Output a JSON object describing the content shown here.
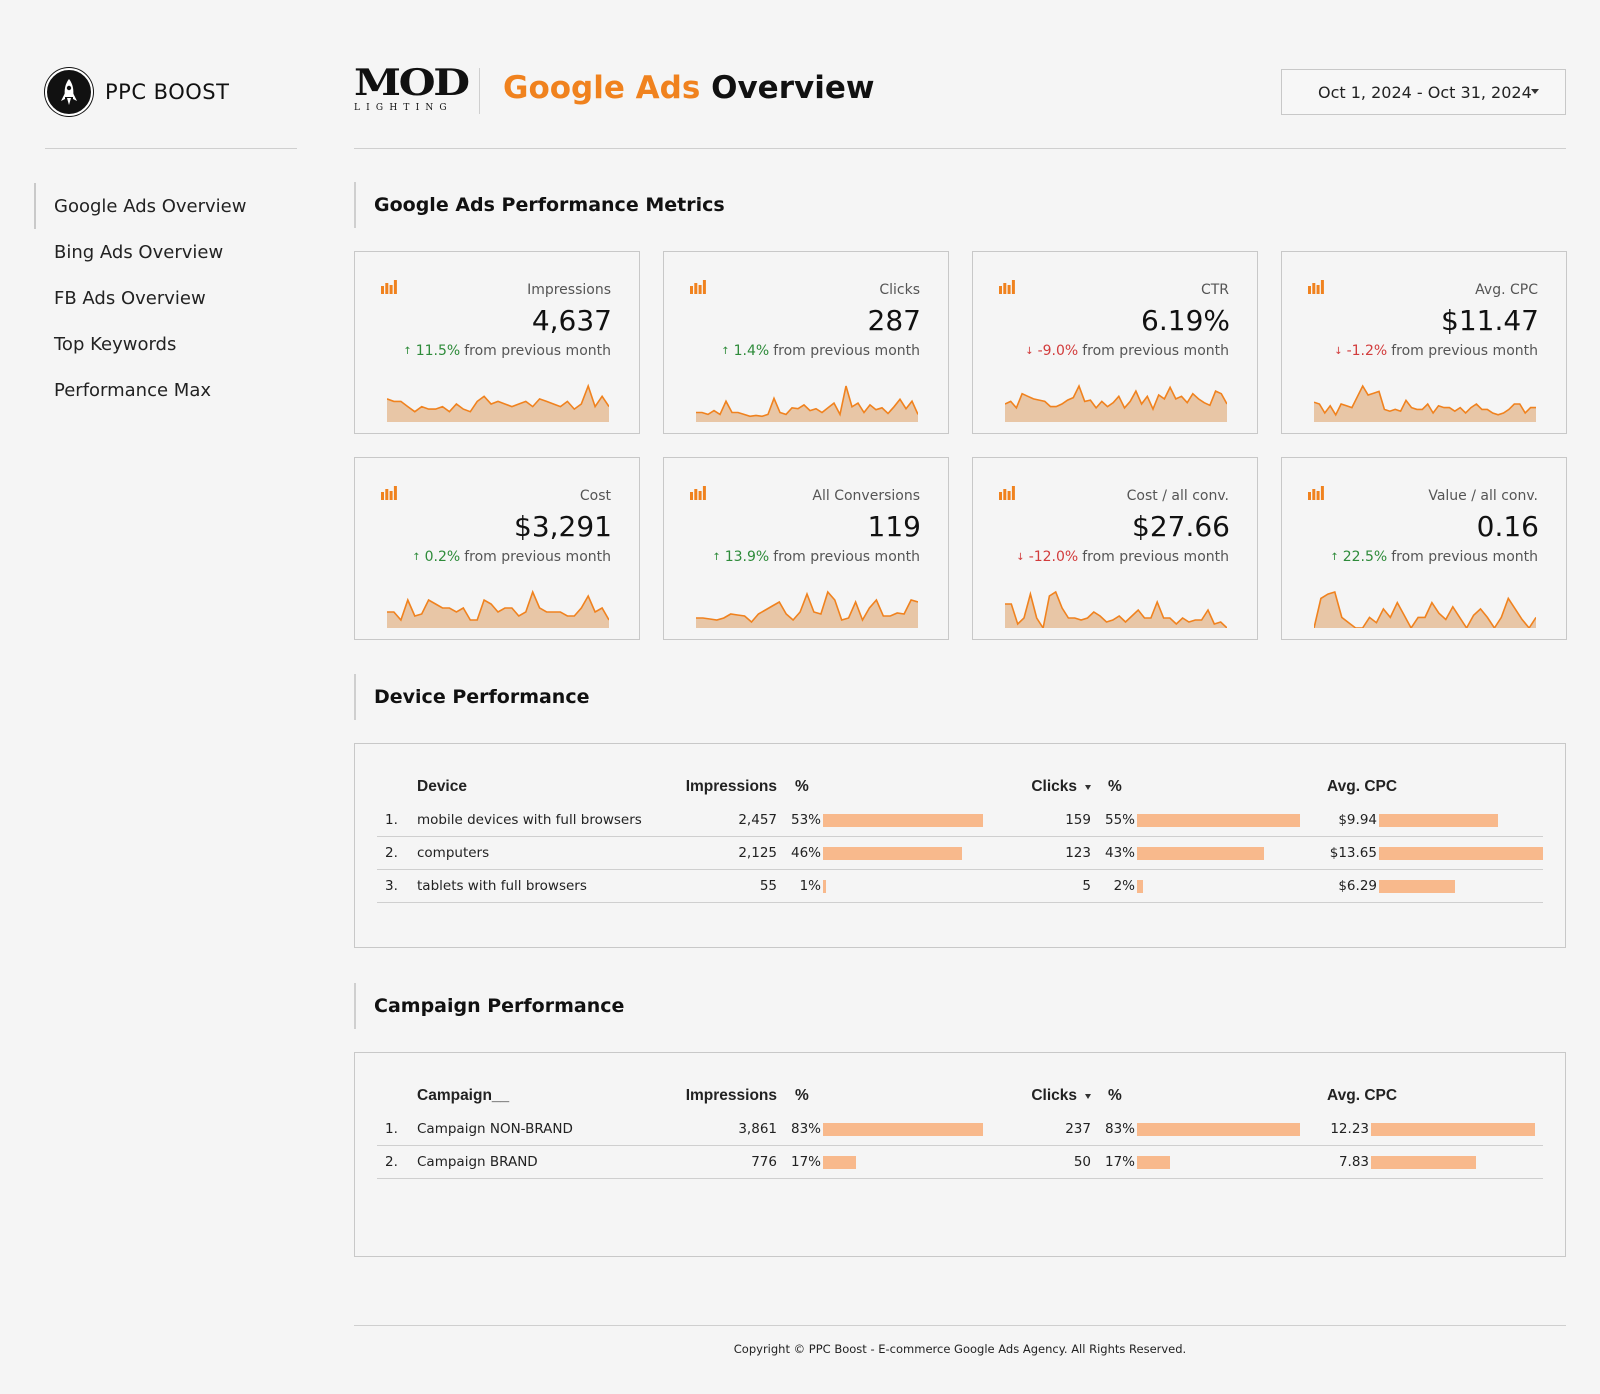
{
  "brand": {
    "name": "PPC BOOST",
    "icon": "rocket-icon"
  },
  "client_logo": {
    "line1": "MOD",
    "line2": "LIGHTING"
  },
  "header": {
    "title_accent": "Google Ads",
    "title_rest": "Overview",
    "accent_color": "#f0821e"
  },
  "date_range": {
    "value": "Oct 1, 2024 - Oct 31, 2024"
  },
  "nav": {
    "items": [
      {
        "label": "Google Ads Overview",
        "active": true
      },
      {
        "label": "Bing Ads Overview"
      },
      {
        "label": "FB Ads Overview"
      },
      {
        "label": "Top Keywords"
      },
      {
        "label": "Performance Max"
      }
    ]
  },
  "sections": {
    "metrics": "Google Ads Performance Metrics",
    "device": "Device Performance",
    "campaign": "Campaign Performance"
  },
  "delta_suffix": "from previous month",
  "colors": {
    "up": "#2e8b3a",
    "down": "#d23c3c",
    "spark_line": "#f0821e",
    "spark_fill": "#e8c6a6",
    "bar": "#f8b98c"
  },
  "metrics": [
    {
      "label": "Impressions",
      "value": "4,637",
      "change": "11.5%",
      "direction": "up",
      "trend": [
        9,
        8,
        8,
        6,
        4,
        6,
        5,
        5,
        6,
        4,
        7,
        5,
        4,
        8,
        10,
        7,
        8,
        7,
        6,
        7,
        8,
        6,
        9,
        8,
        7,
        6,
        8,
        5,
        7,
        14,
        6,
        10,
        6
      ]
    },
    {
      "label": "Clicks",
      "value": "287",
      "change": "1.4%",
      "direction": "up",
      "trend": [
        10,
        10,
        8,
        12,
        8,
        22,
        10,
        10,
        8,
        6,
        7,
        6,
        8,
        25,
        10,
        8,
        15,
        14,
        18,
        12,
        14,
        10,
        15,
        20,
        8,
        38,
        16,
        20,
        10,
        18,
        13,
        15,
        9,
        16,
        24,
        14,
        22,
        8
      ]
    },
    {
      "label": "CTR",
      "value": "6.19%",
      "change": "-9.0%",
      "direction": "down",
      "trend": [
        14,
        16,
        11,
        22,
        20,
        18,
        17,
        16,
        12,
        12,
        14,
        17,
        19,
        28,
        16,
        17,
        11,
        16,
        12,
        15,
        20,
        11,
        16,
        24,
        14,
        20,
        10,
        21,
        18,
        27,
        18,
        20,
        15,
        22,
        18,
        15,
        13,
        24,
        22,
        14
      ]
    },
    {
      "label": "Avg. CPC",
      "value": "$11.47",
      "change": "-1.2%",
      "direction": "down",
      "trend": [
        22,
        20,
        10,
        18,
        8,
        20,
        18,
        16,
        28,
        40,
        30,
        32,
        34,
        14,
        12,
        14,
        12,
        24,
        16,
        14,
        14,
        20,
        10,
        18,
        16,
        16,
        12,
        16,
        10,
        16,
        20,
        14,
        14,
        10,
        8,
        10,
        14,
        20,
        20,
        10,
        16,
        16
      ]
    },
    {
      "label": "Cost",
      "value": "$3,291",
      "change": "0.2%",
      "direction": "up",
      "trend": [
        8,
        8,
        4,
        14,
        6,
        7,
        14,
        12,
        10,
        10,
        8,
        10,
        4,
        4,
        14,
        12,
        8,
        10,
        10,
        6,
        8,
        18,
        10,
        8,
        8,
        8,
        6,
        6,
        10,
        16,
        8,
        10,
        4
      ]
    },
    {
      "label": "All Conversions",
      "value": "119",
      "change": "13.9%",
      "direction": "up",
      "trend": [
        10,
        10,
        9,
        8,
        10,
        14,
        13,
        12,
        6,
        14,
        18,
        22,
        26,
        14,
        8,
        16,
        34,
        16,
        14,
        36,
        28,
        8,
        10,
        26,
        8,
        20,
        28,
        12,
        12,
        15,
        14,
        28,
        26
      ]
    },
    {
      "label": "Cost / all conv.",
      "value": "$27.66",
      "change": "-12.0%",
      "direction": "down",
      "trend": [
        24,
        24,
        4,
        10,
        34,
        10,
        0,
        32,
        36,
        20,
        10,
        10,
        8,
        10,
        16,
        12,
        6,
        8,
        12,
        6,
        12,
        18,
        10,
        10,
        26,
        10,
        10,
        4,
        10,
        6,
        8,
        8,
        18,
        4,
        6,
        0
      ]
    },
    {
      "label": "Value / all conv.",
      "value": "0.16",
      "change": "22.5%",
      "direction": "up",
      "trend": [
        0,
        28,
        32,
        34,
        10,
        5,
        0,
        0,
        10,
        5,
        18,
        10,
        24,
        12,
        0,
        10,
        10,
        24,
        14,
        8,
        20,
        10,
        0,
        12,
        18,
        10,
        0,
        10,
        28,
        18,
        8,
        0,
        10
      ]
    }
  ],
  "device_table": {
    "headers": {
      "name": "Device",
      "impressions": "Impressions",
      "imp_pct": "%",
      "clicks": "Clicks",
      "clk_pct": "%",
      "cpc": "Avg. CPC"
    },
    "rows": [
      {
        "idx": "1.",
        "name": "mobile devices with full browsers",
        "impressions": "2,457",
        "imp_pct": "53%",
        "imp_share": 0.53,
        "clicks": "159",
        "clk_pct": "55%",
        "clk_share": 0.55,
        "cpc": "$9.94",
        "cpc_value": 9.94
      },
      {
        "idx": "2.",
        "name": "computers",
        "impressions": "2,125",
        "imp_pct": "46%",
        "imp_share": 0.46,
        "clicks": "123",
        "clk_pct": "43%",
        "clk_share": 0.43,
        "cpc": "$13.65",
        "cpc_value": 13.65
      },
      {
        "idx": "3.",
        "name": "tablets with full browsers",
        "impressions": "55",
        "imp_pct": "1%",
        "imp_share": 0.01,
        "clicks": "5",
        "clk_pct": "2%",
        "clk_share": 0.02,
        "cpc": "$6.29",
        "cpc_value": 6.29
      }
    ]
  },
  "campaign_table": {
    "headers": {
      "name": "Campaign__",
      "impressions": "Impressions",
      "imp_pct": "%",
      "clicks": "Clicks",
      "clk_pct": "%",
      "cpc": "Avg. CPC"
    },
    "rows": [
      {
        "idx": "1.",
        "name": "Campaign NON-BRAND",
        "impressions": "3,861",
        "imp_pct": "83%",
        "imp_share": 0.83,
        "clicks": "237",
        "clk_pct": "83%",
        "clk_share": 0.83,
        "cpc": "12.23",
        "cpc_value": 12.23
      },
      {
        "idx": "2.",
        "name": "Campaign BRAND",
        "impressions": "776",
        "imp_pct": "17%",
        "imp_share": 0.17,
        "clicks": "50",
        "clk_pct": "17%",
        "clk_share": 0.17,
        "cpc": "7.83",
        "cpc_value": 7.83
      }
    ]
  },
  "footer": {
    "text": "Copyright © PPC Boost - E-commerce Google Ads Agency. All Rights Reserved."
  }
}
